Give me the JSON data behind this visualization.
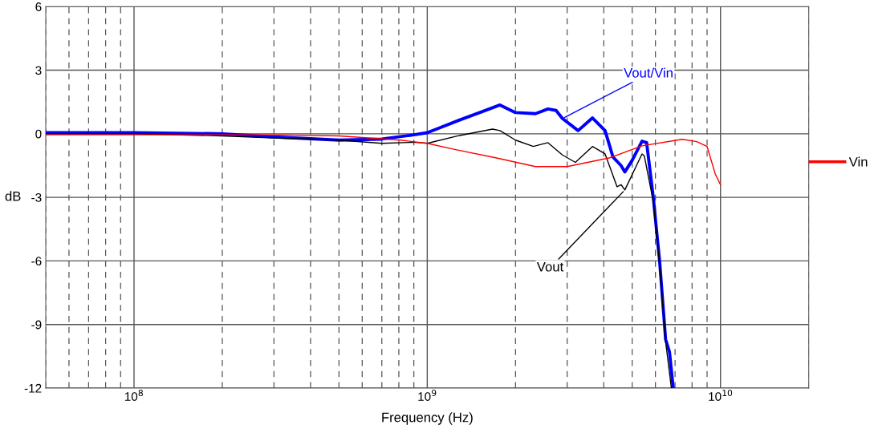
{
  "chart_data": {
    "type": "line",
    "xlabel": "Frequency (Hz)",
    "ylabel": "dB",
    "log": "x",
    "grid": true,
    "legend": "right",
    "marker": "none",
    "line_style": "solid",
    "xlim": [
      50000000.0,
      20000000000.0
    ],
    "xticks": [
      {
        "value": 100000000.0,
        "label": "10$^{8}$"
      },
      {
        "value": 1000000000.0,
        "label": "10$^{9}$"
      },
      {
        "value": 10000000000.0,
        "label": "10$^{10}$"
      }
    ],
    "ylim": [
      -12,
      6
    ],
    "yticks": [
      -12,
      -9,
      -6,
      -3,
      0,
      3,
      6
    ],
    "series": [
      {
        "name": "Vin",
        "color": "#ff0000",
        "x": [
          50000000.0,
          100000000.0,
          300000000.0,
          500000000.0,
          810000000.0,
          1000000000.0,
          1250000000.0,
          1710000000.0,
          2340000000.0,
          3000000000.0,
          4200000000.0,
          5400000000.0,
          7400000000.0,
          8300000000.0,
          9000000000.0,
          9600000000.0,
          10000000000.0
        ],
        "values": [
          -0.05,
          -0.05,
          -0.05,
          -0.1,
          -0.3,
          -0.45,
          -0.75,
          -1.13,
          -1.55,
          -1.55,
          -1.13,
          -0.57,
          -0.26,
          -0.37,
          -0.6,
          -1.9,
          -2.4
        ]
      },
      {
        "name": "Vout",
        "color": "#000000",
        "x": [
          50000000.0,
          100000000.0,
          200000000.0,
          300000000.0,
          400000000.0,
          500000000.0,
          700000000.0,
          900000000.0,
          1000000000.0,
          1290000000.0,
          1670000000.0,
          1770000000.0,
          2000000000.0,
          2300000000.0,
          2580000000.0,
          2890000000.0,
          3200000000.0,
          3660000000.0,
          4040000000.0,
          4440000000.0,
          4580000000.0,
          4720000000.0,
          5400000000.0,
          5500000000.0,
          5900000000.0,
          6200000000.0,
          6500000000.0,
          6800000000.0
        ],
        "values": [
          0,
          0,
          -0.1,
          -0.2,
          -0.25,
          -0.3,
          -0.45,
          -0.4,
          -0.45,
          -0.08,
          0.22,
          0.15,
          -0.3,
          -0.6,
          -0.42,
          -1.0,
          -1.35,
          -0.6,
          -0.95,
          -2.5,
          -2.4,
          -2.65,
          -0.95,
          -1.05,
          -3.2,
          -6.2,
          -9.8,
          -12
        ]
      },
      {
        "name": "Vout/Vin",
        "color": "#0000ff",
        "x": [
          50000000.0,
          100000000.0,
          200000000.0,
          300000000.0,
          500000000.0,
          700000000.0,
          900000000.0,
          1000000000.0,
          1290000000.0,
          1510000000.0,
          1770000000.0,
          2000000000.0,
          2340000000.0,
          2580000000.0,
          2750000000.0,
          2890000000.0,
          3270000000.0,
          3660000000.0,
          4040000000.0,
          4300000000.0,
          4580000000.0,
          4720000000.0,
          5000000000.0,
          5400000000.0,
          5600000000.0,
          5900000000.0,
          6200000000.0,
          6500000000.0,
          6700000000.0,
          6900000000.0
        ],
        "values": [
          0.05,
          0.05,
          0.0,
          -0.15,
          -0.3,
          -0.25,
          -0.05,
          0.05,
          0.65,
          1.0,
          1.36,
          1.0,
          0.95,
          1.17,
          1.1,
          0.72,
          0.15,
          0.75,
          0.15,
          -1.1,
          -1.5,
          -1.8,
          -1.25,
          -0.35,
          -0.42,
          -3.0,
          -6.0,
          -9.7,
          -10.3,
          -12
        ]
      }
    ]
  }
}
